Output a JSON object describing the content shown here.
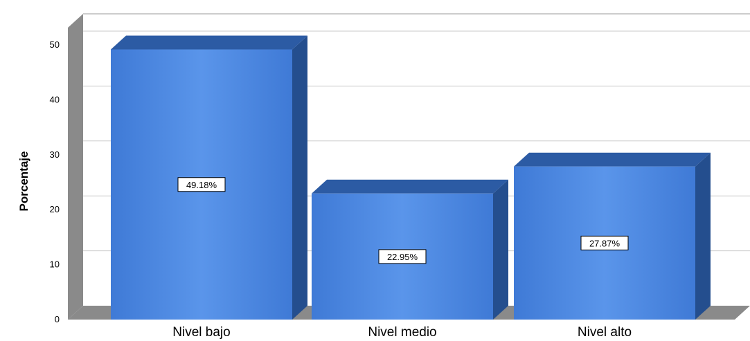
{
  "chart_data": {
    "type": "bar",
    "categories": [
      "Nivel bajo",
      "Nivel medio",
      "Nivel alto"
    ],
    "values": [
      49.18,
      22.95,
      27.87
    ],
    "data_labels": [
      "49.18%",
      "22.95%",
      "27.87%"
    ],
    "title": "",
    "xlabel": "",
    "ylabel": "Porcentaje",
    "ylim": [
      0,
      50
    ],
    "yticks": [
      0,
      10,
      20,
      30,
      40,
      50
    ],
    "grid": true,
    "style": "3d",
    "colors": {
      "bar_front": "#4a86e0",
      "bar_top": "#2c5ba4",
      "bar_side": "#244e8e",
      "wall": "#8a8a8a",
      "grid": "#c9c9c9"
    }
  }
}
